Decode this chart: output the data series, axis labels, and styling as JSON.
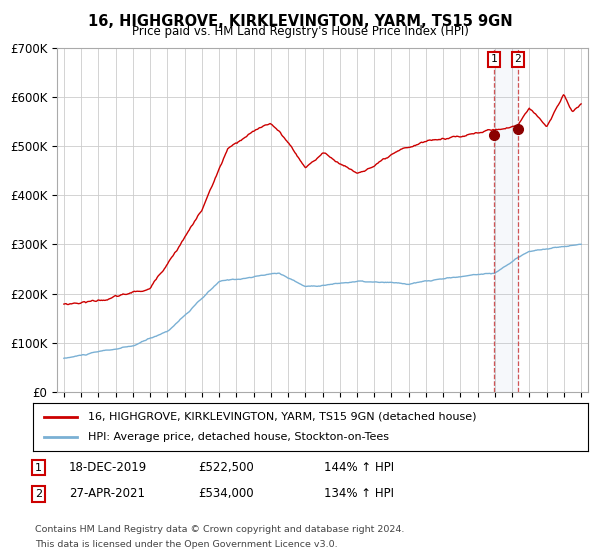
{
  "title": "16, HIGHGROVE, KIRKLEVINGTON, YARM, TS15 9GN",
  "subtitle": "Price paid vs. HM Land Registry's House Price Index (HPI)",
  "legend_line1": "16, HIGHGROVE, KIRKLEVINGTON, YARM, TS15 9GN (detached house)",
  "legend_line2": "HPI: Average price, detached house, Stockton-on-Tees",
  "red_color": "#cc0000",
  "blue_color": "#7ab0d4",
  "marker_color": "#8b0000",
  "annotation1": {
    "label": "1",
    "date": "18-DEC-2019",
    "price": "£522,500",
    "pct": "144% ↑ HPI"
  },
  "annotation2": {
    "label": "2",
    "date": "27-APR-2021",
    "price": "£534,000",
    "pct": "134% ↑ HPI"
  },
  "footnote1": "Contains HM Land Registry data © Crown copyright and database right 2024.",
  "footnote2": "This data is licensed under the Open Government Licence v3.0.",
  "ylim": [
    0,
    700000
  ],
  "yticks": [
    0,
    100000,
    200000,
    300000,
    400000,
    500000,
    600000,
    700000
  ],
  "ytick_labels": [
    "£0",
    "£100K",
    "£200K",
    "£300K",
    "£400K",
    "£500K",
    "£600K",
    "£700K"
  ],
  "grid_color": "#cccccc",
  "bg_color": "#ffffff",
  "marker1_x": 2019.96,
  "marker1_y": 522500,
  "marker2_x": 2021.32,
  "marker2_y": 534000,
  "vline1_x": 2019.96,
  "vline2_x": 2021.32,
  "xlim_left": 1994.6,
  "xlim_right": 2025.4
}
